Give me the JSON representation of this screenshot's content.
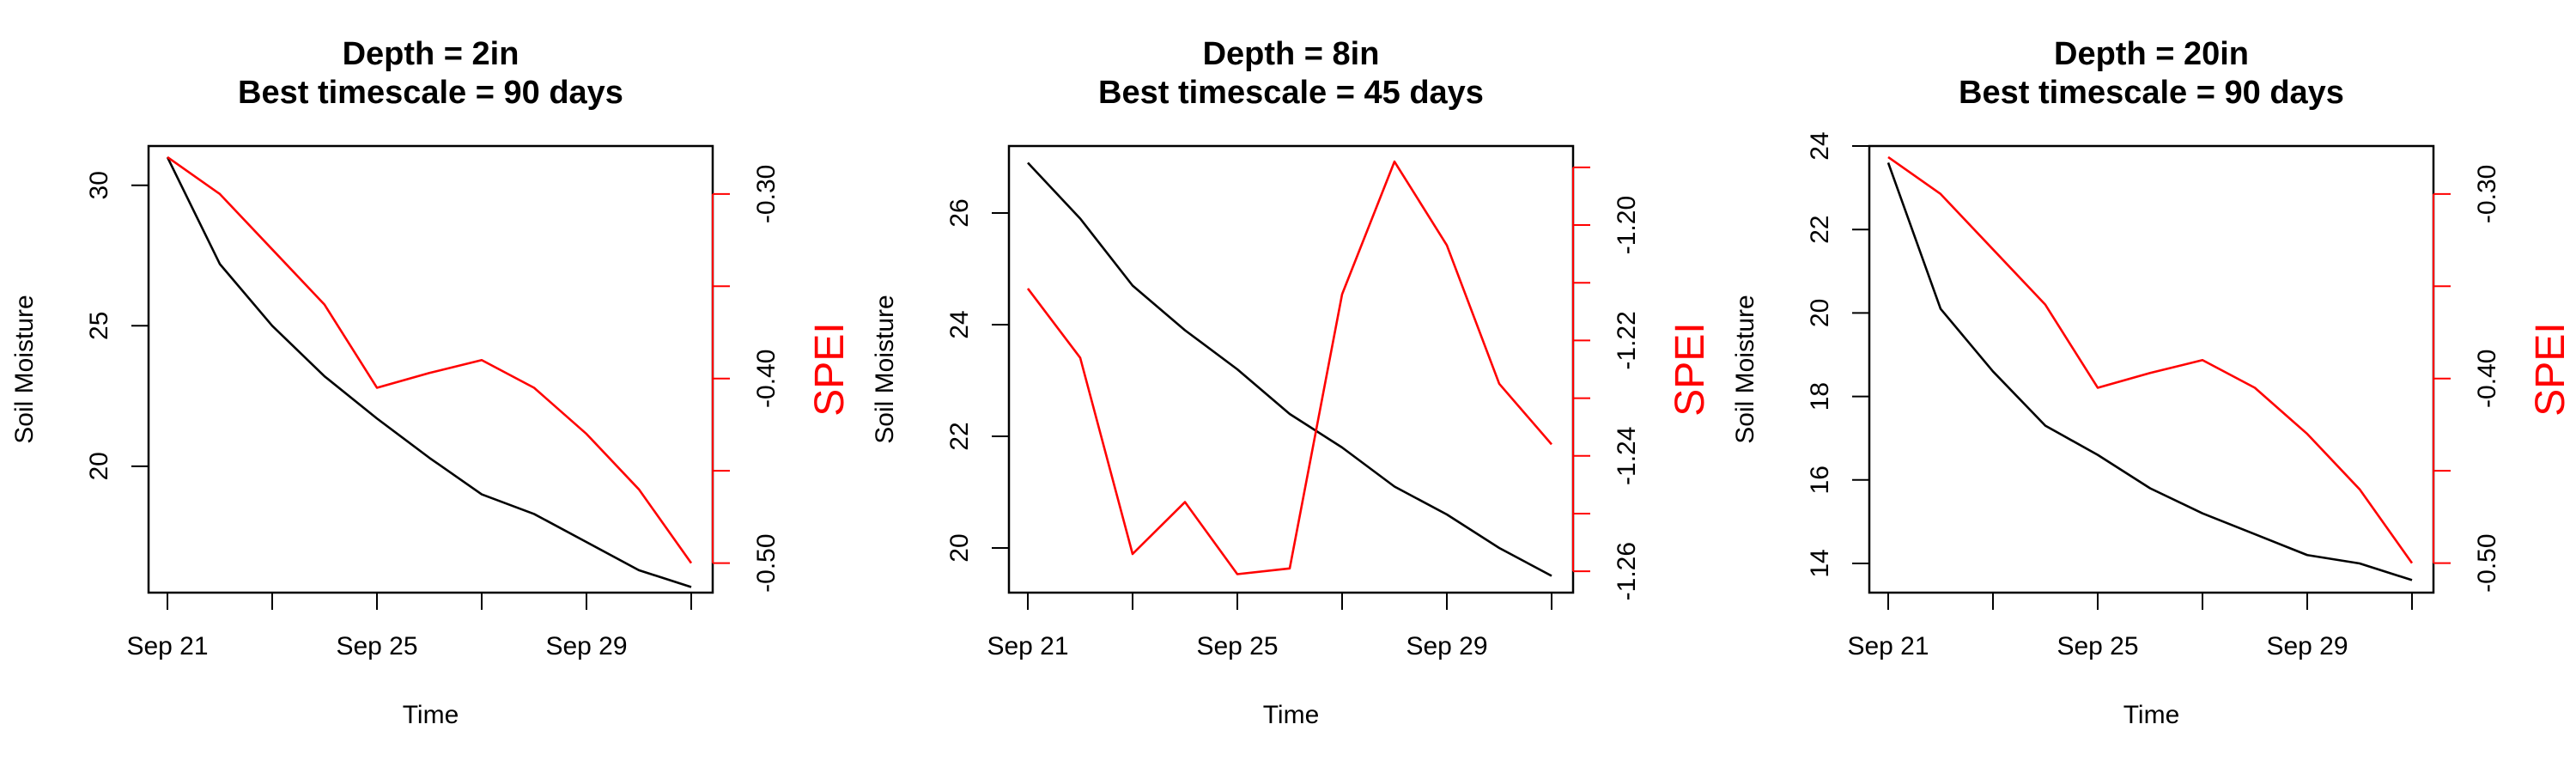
{
  "colors": {
    "soil": "#000000",
    "spei": "#ff0000",
    "box": "#000000"
  },
  "chart_data": [
    {
      "type": "line",
      "title_line1": "Depth = 2in",
      "title_line2": "Best timescale = 90 days",
      "xlabel": "Time",
      "ylabel_left": "Soil Moisture",
      "ylabel_right": "SPEI",
      "x": [
        "Sep 21",
        "Sep 22",
        "Sep 23",
        "Sep 24",
        "Sep 25",
        "Sep 26",
        "Sep 27",
        "Sep 28",
        "Sep 29",
        "Sep 30",
        "Oct 1"
      ],
      "x_ticks": [
        "Sep 21",
        "Sep 23",
        "Sep 25",
        "Sep 27",
        "Sep 29",
        "Oct 1"
      ],
      "x_tick_labels": [
        "Sep 21",
        "",
        "Sep 25",
        "",
        "Sep 29",
        ""
      ],
      "left": {
        "name": "Soil Moisture",
        "ylim": [
          15.5,
          31.4
        ],
        "ticks": [
          20,
          25,
          30
        ],
        "tick_labels": [
          "20",
          "25",
          "30"
        ],
        "values": [
          31.0,
          27.2,
          25.0,
          23.2,
          21.7,
          20.3,
          19.0,
          18.3,
          17.3,
          16.3,
          15.7
        ]
      },
      "right": {
        "name": "SPEI",
        "ylim": [
          -0.516,
          -0.274
        ],
        "ticks": [
          -0.5,
          -0.45,
          -0.4,
          -0.35,
          -0.3
        ],
        "tick_labels": [
          "-0.50",
          "",
          "-0.40",
          "",
          "-0.30"
        ],
        "values": [
          -0.28,
          -0.3,
          -0.33,
          -0.36,
          -0.405,
          -0.397,
          -0.39,
          -0.405,
          -0.43,
          -0.46,
          -0.5
        ]
      }
    },
    {
      "type": "line",
      "title_line1": "Depth = 8in",
      "title_line2": "Best timescale = 45 days",
      "xlabel": "Time",
      "ylabel_left": "Soil Moisture",
      "ylabel_right": "SPEI",
      "x": [
        "Sep 21",
        "Sep 22",
        "Sep 23",
        "Sep 24",
        "Sep 25",
        "Sep 26",
        "Sep 27",
        "Sep 28",
        "Sep 29",
        "Sep 30",
        "Oct 1"
      ],
      "x_ticks": [
        "Sep 21",
        "Sep 23",
        "Sep 25",
        "Sep 27",
        "Sep 29",
        "Oct 1"
      ],
      "x_tick_labels": [
        "Sep 21",
        "",
        "Sep 25",
        "",
        "Sep 29",
        ""
      ],
      "left": {
        "name": "Soil Moisture",
        "ylim": [
          19.2,
          27.2
        ],
        "ticks": [
          20,
          22,
          24,
          26
        ],
        "tick_labels": [
          "20",
          "22",
          "24",
          "26"
        ],
        "values": [
          26.9,
          25.9,
          24.7,
          23.9,
          23.2,
          22.4,
          21.8,
          21.1,
          20.6,
          20.0,
          19.5
        ]
      },
      "right": {
        "name": "SPEI",
        "ylim": [
          -1.2637,
          -1.1863
        ],
        "ticks": [
          -1.26,
          -1.25,
          -1.24,
          -1.23,
          -1.22,
          -1.21,
          -1.2,
          -1.19
        ],
        "tick_labels": [
          "-1.26",
          "",
          "-1.24",
          "",
          "-1.22",
          "",
          "-1.20",
          ""
        ],
        "values": [
          -1.211,
          -1.223,
          -1.257,
          -1.248,
          -1.2605,
          -1.2595,
          -1.212,
          -1.189,
          -1.2035,
          -1.2275,
          -1.238
        ]
      }
    },
    {
      "type": "line",
      "title_line1": "Depth = 20in",
      "title_line2": "Best timescale = 90 days",
      "xlabel": "Time",
      "ylabel_left": "Soil Moisture",
      "ylabel_right": "SPEI",
      "x": [
        "Sep 21",
        "Sep 22",
        "Sep 23",
        "Sep 24",
        "Sep 25",
        "Sep 26",
        "Sep 27",
        "Sep 28",
        "Sep 29",
        "Sep 30",
        "Oct 1"
      ],
      "x_ticks": [
        "Sep 21",
        "Sep 23",
        "Sep 25",
        "Sep 27",
        "Sep 29",
        "Oct 1"
      ],
      "x_tick_labels": [
        "Sep 21",
        "",
        "Sep 25",
        "",
        "Sep 29",
        ""
      ],
      "left": {
        "name": "Soil Moisture",
        "ylim": [
          13.3,
          24.0
        ],
        "ticks": [
          14,
          16,
          18,
          20,
          22,
          24
        ],
        "tick_labels": [
          "14",
          "16",
          "18",
          "20",
          "22",
          "24"
        ],
        "values": [
          23.6,
          20.1,
          18.6,
          17.3,
          16.6,
          15.8,
          15.2,
          14.7,
          14.2,
          14.0,
          13.6
        ]
      },
      "right": {
        "name": "SPEI",
        "ylim": [
          -0.516,
          -0.274
        ],
        "ticks": [
          -0.5,
          -0.45,
          -0.4,
          -0.35,
          -0.3
        ],
        "tick_labels": [
          "-0.50",
          "",
          "-0.40",
          "",
          "-0.30"
        ],
        "values": [
          -0.28,
          -0.3,
          -0.33,
          -0.36,
          -0.405,
          -0.397,
          -0.39,
          -0.405,
          -0.43,
          -0.46,
          -0.5
        ]
      }
    }
  ]
}
